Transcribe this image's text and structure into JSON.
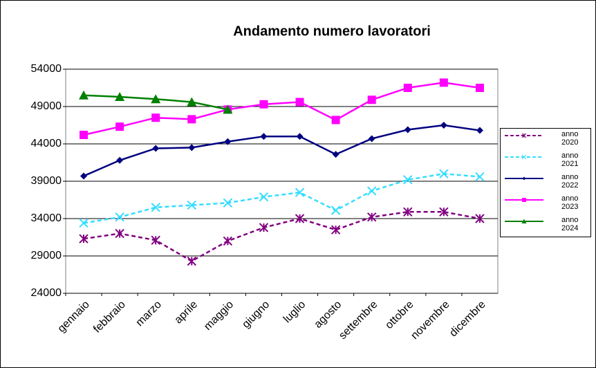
{
  "chart_data": {
    "type": "line",
    "title": "Andamento numero lavoratori",
    "categories": [
      "gennaio",
      "febbraio",
      "marzo",
      "aprile",
      "maggio",
      "giugno",
      "luglio",
      "agosto",
      "settembre",
      "ottobre",
      "novembre",
      "dicembre"
    ],
    "ylim": [
      24000,
      54000
    ],
    "yticks": [
      24000,
      29000,
      34000,
      39000,
      44000,
      49000,
      54000
    ],
    "grid": true,
    "legend": "right",
    "series": [
      {
        "name": "anno 2020",
        "color": "#800080",
        "dashed": true,
        "marker": "asterisk",
        "values": [
          31300,
          32000,
          31100,
          28300,
          31000,
          32800,
          34000,
          32500,
          34200,
          34900,
          34900,
          34000
        ]
      },
      {
        "name": "anno 2021",
        "color": "#33ddff",
        "dashed": true,
        "marker": "cross",
        "values": [
          33400,
          34200,
          35500,
          35800,
          36100,
          36900,
          37500,
          35100,
          37700,
          39200,
          40000,
          39600
        ]
      },
      {
        "name": "anno 2022",
        "color": "#000080",
        "dashed": false,
        "marker": "diamond",
        "values": [
          39700,
          41800,
          43400,
          43500,
          44300,
          45000,
          45000,
          42600,
          44700,
          45900,
          46500,
          45800
        ]
      },
      {
        "name": "anno 2023",
        "color": "#ff00ff",
        "dashed": false,
        "marker": "square",
        "values": [
          45200,
          46300,
          47500,
          47300,
          48600,
          49300,
          49600,
          47200,
          49900,
          51500,
          52200,
          51500
        ]
      },
      {
        "name": "anno 2024",
        "color": "#008000",
        "dashed": false,
        "marker": "triangle",
        "values": [
          50500,
          50300,
          50000,
          49600,
          48600,
          null,
          null,
          null,
          null,
          null,
          null,
          null
        ]
      }
    ]
  }
}
